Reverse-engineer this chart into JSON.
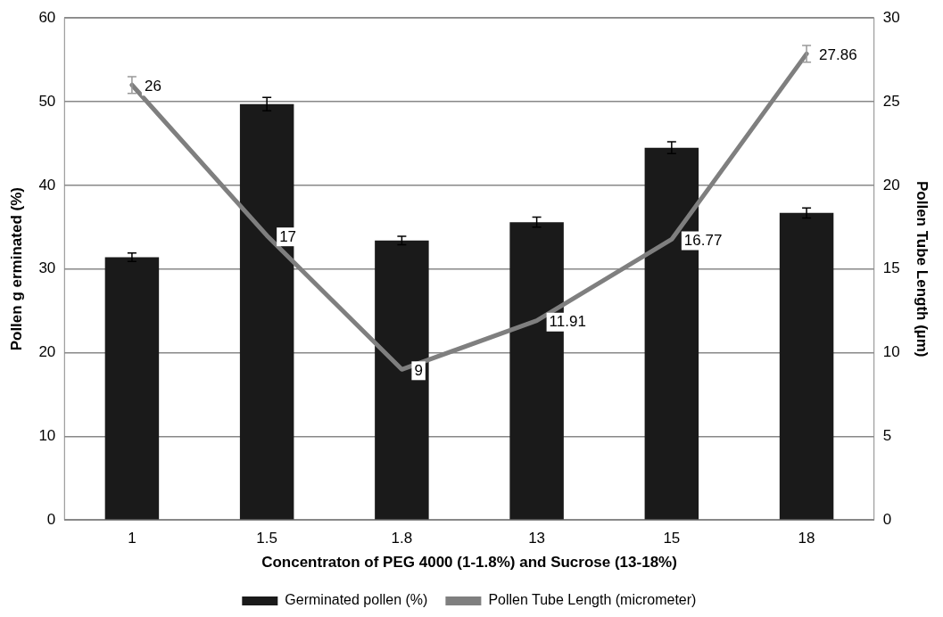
{
  "chart_data": {
    "type": "bar",
    "xlabel": "Concentraton of PEG 4000 (1-1.8%) and Sucrose (13-18%)",
    "ylabel": "Pollen g erminated (%)",
    "y2label": "Pollen Tube Length (µm)",
    "categories": [
      "1",
      "1.5",
      "1.8",
      "13",
      "15",
      "18"
    ],
    "series": [
      {
        "name": "Germinated pollen (%)",
        "color": "#1a1a1a",
        "values": [
          31.4,
          49.7,
          33.4,
          35.6,
          44.5,
          36.7
        ],
        "errors": [
          0.5,
          0.8,
          0.5,
          0.6,
          0.7,
          0.6
        ]
      },
      {
        "name": "Pollen Tube Length (micrometer)",
        "type": "line",
        "axis": "y2",
        "color": "#7f7f7f",
        "values": [
          26,
          17,
          9,
          11.91,
          16.77,
          27.86
        ],
        "errors": [
          0.5,
          null,
          null,
          null,
          null,
          0.5
        ],
        "value_labels": [
          "26",
          "17",
          "9",
          "11.91",
          "16.77",
          "27.86"
        ]
      }
    ],
    "ylim": [
      0,
      60
    ],
    "yticks": [
      0,
      10,
      20,
      30,
      40,
      50,
      60
    ],
    "y2lim": [
      0,
      30
    ],
    "y2ticks": [
      0,
      5,
      10,
      15,
      20,
      25,
      30
    ],
    "grid": "y",
    "legend": "bottom",
    "marker": "none"
  }
}
